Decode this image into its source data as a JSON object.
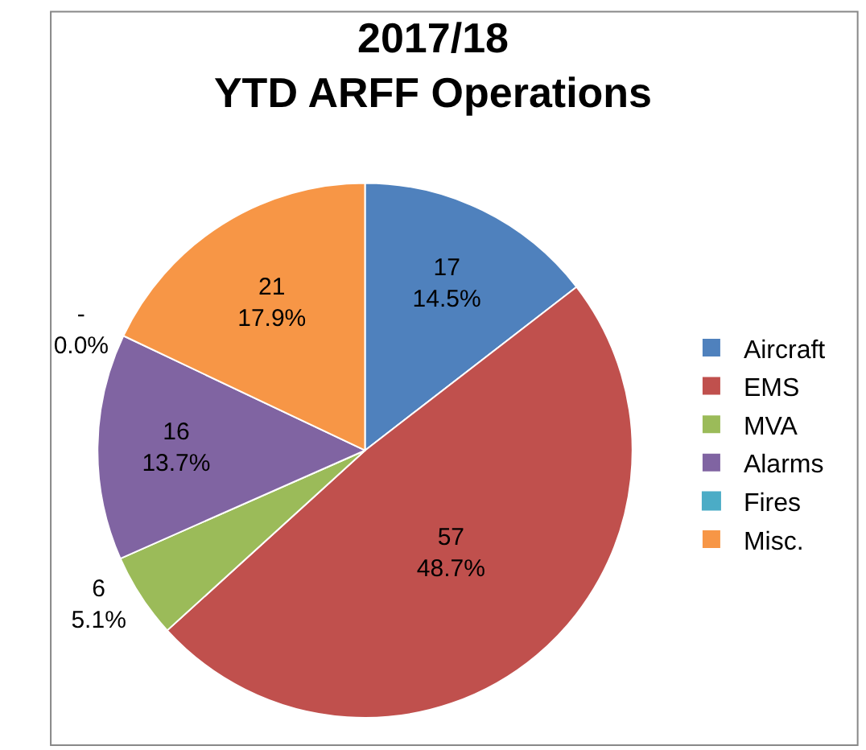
{
  "chart_data": {
    "type": "pie",
    "title": "2017/18\nYTD ARFF Operations",
    "categories": [
      "Aircraft",
      "EMS",
      "MVA",
      "Alarms",
      "Fires",
      "Misc."
    ],
    "values": [
      17,
      57,
      6,
      16,
      0,
      21
    ],
    "colors": [
      "#4f81bd",
      "#c0504d",
      "#9bbb59",
      "#8064a2",
      "#4bacc6",
      "#f79646"
    ],
    "value_labels": [
      "17\n14.5%",
      "57\n48.7%",
      "6\n5.1%",
      "16\n13.7%",
      "-\n0.0%",
      "21\n17.9%"
    ],
    "legend": "right"
  }
}
